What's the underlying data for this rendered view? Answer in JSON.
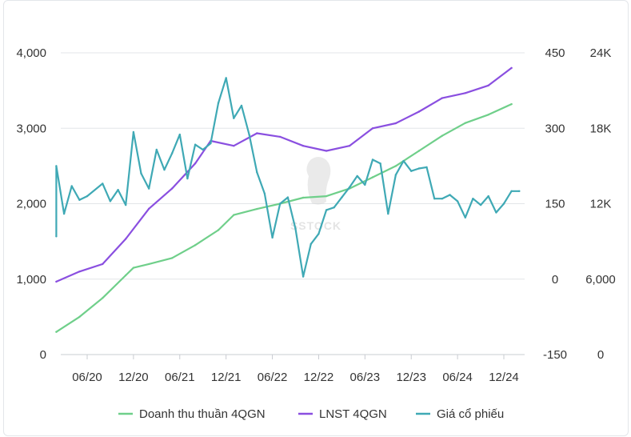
{
  "chart_data": {
    "type": "line",
    "x_tick_labels": [
      "06/20",
      "12/20",
      "06/21",
      "12/21",
      "06/22",
      "12/22",
      "06/23",
      "12/23",
      "06/24",
      "12/24"
    ],
    "axes": {
      "left": {
        "ticks": [
          "0",
          "1,000",
          "2,000",
          "3,000",
          "4,000"
        ],
        "ylim": [
          0,
          4000
        ]
      },
      "right1": {
        "ticks": [
          "-150",
          "0",
          "150",
          "300",
          "450"
        ],
        "ylim": [
          -150,
          450
        ]
      },
      "right2": {
        "ticks": [
          "0",
          "6,000",
          "12K",
          "18K",
          "24K"
        ],
        "ylim": [
          0,
          24000
        ]
      }
    },
    "grid": "horizontal",
    "legend_position": "bottom",
    "series": [
      {
        "name": "Doanh thu thuần 4QGN",
        "axis": "left",
        "color": "#6fcf8a",
        "points": [
          [
            "2020-02",
            300
          ],
          [
            "2020-05",
            500
          ],
          [
            "2020-08",
            750
          ],
          [
            "2020-11",
            1050
          ],
          [
            "2020-12",
            1150
          ],
          [
            "2021-02",
            1200
          ],
          [
            "2021-05",
            1280
          ],
          [
            "2021-08",
            1450
          ],
          [
            "2021-11",
            1650
          ],
          [
            "2022-01",
            1850
          ],
          [
            "2022-04",
            1930
          ],
          [
            "2022-07",
            2000
          ],
          [
            "2022-10",
            2080
          ],
          [
            "2023-01",
            2100
          ],
          [
            "2023-04",
            2200
          ],
          [
            "2023-07",
            2350
          ],
          [
            "2023-10",
            2500
          ],
          [
            "2024-01",
            2700
          ],
          [
            "2024-04",
            2900
          ],
          [
            "2024-07",
            3070
          ],
          [
            "2024-10",
            3180
          ],
          [
            "2025-01",
            3320
          ]
        ]
      },
      {
        "name": "LNST 4QGN",
        "axis": "right1",
        "color": "#8a4fe0",
        "points": [
          [
            "2020-02",
            -5
          ],
          [
            "2020-05",
            15
          ],
          [
            "2020-08",
            30
          ],
          [
            "2020-11",
            80
          ],
          [
            "2021-02",
            140
          ],
          [
            "2021-05",
            180
          ],
          [
            "2021-08",
            230
          ],
          [
            "2021-10",
            275
          ],
          [
            "2022-01",
            265
          ],
          [
            "2022-04",
            290
          ],
          [
            "2022-07",
            283
          ],
          [
            "2022-10",
            265
          ],
          [
            "2023-01",
            255
          ],
          [
            "2023-04",
            265
          ],
          [
            "2023-07",
            300
          ],
          [
            "2023-10",
            310
          ],
          [
            "2024-01",
            333
          ],
          [
            "2024-04",
            360
          ],
          [
            "2024-07",
            370
          ],
          [
            "2024-10",
            385
          ],
          [
            "2025-01",
            420
          ]
        ]
      },
      {
        "name": "Giá cổ phiếu",
        "axis": "right2",
        "color": "#3fa9b5",
        "points": [
          [
            "2020-02",
            9400
          ],
          [
            "2020-02",
            15000
          ],
          [
            "2020-03",
            11200
          ],
          [
            "2020-04",
            13400
          ],
          [
            "2020-05",
            12300
          ],
          [
            "2020-06",
            12600
          ],
          [
            "2020-08",
            13600
          ],
          [
            "2020-09",
            12200
          ],
          [
            "2020-10",
            13100
          ],
          [
            "2020-11",
            11900
          ],
          [
            "2020-12",
            17700
          ],
          [
            "2021-01",
            14400
          ],
          [
            "2021-02",
            13200
          ],
          [
            "2021-03",
            16300
          ],
          [
            "2021-04",
            14700
          ],
          [
            "2021-05",
            16000
          ],
          [
            "2021-06",
            17500
          ],
          [
            "2021-07",
            14000
          ],
          [
            "2021-08",
            16700
          ],
          [
            "2021-09",
            16300
          ],
          [
            "2021-10",
            16800
          ],
          [
            "2021-11",
            20000
          ],
          [
            "2021-12",
            22000
          ],
          [
            "2022-01",
            18800
          ],
          [
            "2022-02",
            19800
          ],
          [
            "2022-03",
            17500
          ],
          [
            "2022-04",
            14500
          ],
          [
            "2022-05",
            12800
          ],
          [
            "2022-06",
            9300
          ],
          [
            "2022-07",
            12000
          ],
          [
            "2022-08",
            12500
          ],
          [
            "2022-09",
            10000
          ],
          [
            "2022-10",
            6200
          ],
          [
            "2022-11",
            8800
          ],
          [
            "2022-12",
            9600
          ],
          [
            "2023-01",
            11500
          ],
          [
            "2023-02",
            11700
          ],
          [
            "2023-03",
            12500
          ],
          [
            "2023-04",
            13300
          ],
          [
            "2023-05",
            14200
          ],
          [
            "2023-06",
            13500
          ],
          [
            "2023-07",
            15500
          ],
          [
            "2023-08",
            15200
          ],
          [
            "2023-09",
            11200
          ],
          [
            "2023-10",
            14300
          ],
          [
            "2023-11",
            15400
          ],
          [
            "2023-12",
            14600
          ],
          [
            "2024-01",
            14800
          ],
          [
            "2024-02",
            14900
          ],
          [
            "2024-03",
            12400
          ],
          [
            "2024-04",
            12400
          ],
          [
            "2024-05",
            12700
          ],
          [
            "2024-06",
            12200
          ],
          [
            "2024-07",
            10900
          ],
          [
            "2024-08",
            12400
          ],
          [
            "2024-09",
            11900
          ],
          [
            "2024-10",
            12600
          ],
          [
            "2024-11",
            11300
          ],
          [
            "2024-12",
            12000
          ],
          [
            "2025-01",
            13000
          ],
          [
            "2025-02",
            13000
          ]
        ]
      }
    ],
    "watermark": "SSTOCK"
  }
}
